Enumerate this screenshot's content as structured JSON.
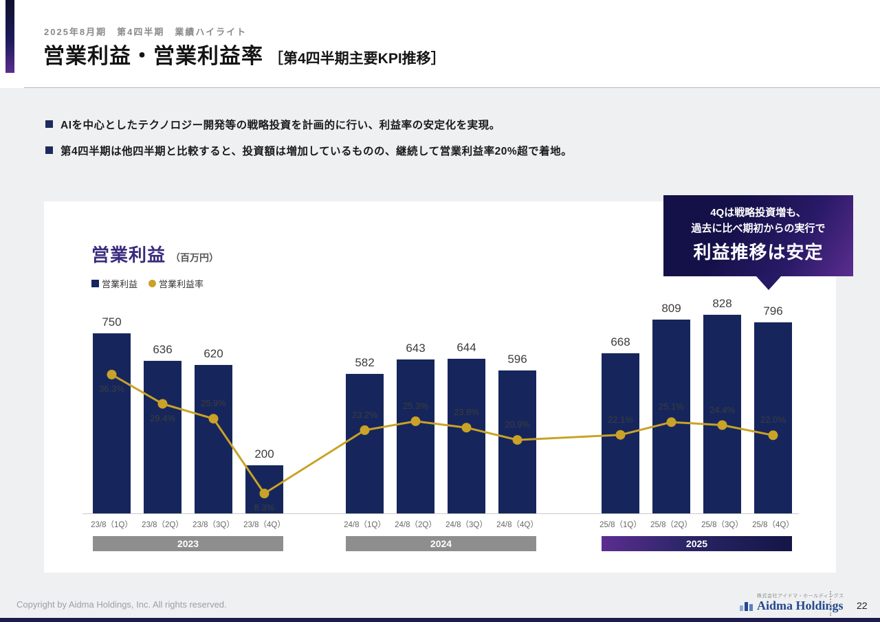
{
  "page": {
    "eyebrow": "2025年8月期　第4四半期　業績ハイライト",
    "title": "営業利益・営業利益率",
    "title_suffix": "［第4四半期主要KPI推移］",
    "bullets": [
      "AIを中心としたテクノロジー開発等の戦略投資を計画的に行い、利益率の安定化を実現。",
      "第4四半期は他四半期と比較すると、投資額は増加しているものの、継続して営業利益率20%超で着地。"
    ]
  },
  "callout": {
    "line1": "4Qは戦略投資増も、",
    "line2": "過去に比べ期初からの実行で",
    "line3": "利益推移は安定"
  },
  "chart_data": {
    "type": "bar",
    "title": "営業利益",
    "unit_label": "（百万円）",
    "legend": [
      {
        "label": "営業利益",
        "marker": "square",
        "color": "#16265c"
      },
      {
        "label": "営業利益率",
        "marker": "circle",
        "color": "#c9a227"
      }
    ],
    "legend_position": "top-left",
    "grid": false,
    "ylim": [
      0,
      900
    ],
    "categories": [
      "23/8（1Q）",
      "23/8（2Q）",
      "23/8（3Q）",
      "23/8（4Q）",
      "24/8（1Q）",
      "24/8（2Q）",
      "24/8（3Q）",
      "24/8（4Q）",
      "25/8（1Q）",
      "25/8（2Q）",
      "25/8（3Q）",
      "25/8（4Q）"
    ],
    "series": [
      {
        "name": "営業利益",
        "type": "bar",
        "color": "#16265c",
        "values": [
          750,
          636,
          620,
          200,
          582,
          643,
          644,
          596,
          668,
          809,
          828,
          796
        ]
      },
      {
        "name": "営業利益率",
        "type": "line",
        "color": "#c9a227",
        "unit": "%",
        "values": [
          36.3,
          29.4,
          25.9,
          8.3,
          23.2,
          25.3,
          23.8,
          20.9,
          22.1,
          25.1,
          24.4,
          22.0
        ],
        "label_side": [
          "below",
          "below",
          "above",
          "below",
          "above",
          "above",
          "above",
          "above",
          "above",
          "above",
          "above",
          "above"
        ]
      }
    ],
    "groups": [
      {
        "label": "2023",
        "style": "gray",
        "from": 0,
        "to": 3
      },
      {
        "label": "2024",
        "style": "gray",
        "from": 4,
        "to": 7
      },
      {
        "label": "2025",
        "style": "gradient",
        "from": 8,
        "to": 11
      }
    ]
  },
  "footer": {
    "copyright": "Copyright by Aidma Holdings, Inc. All rights reserved.",
    "logo_sub": "株式会社アイドマ・ホールディングス",
    "logo_text": "Aidma Holdings",
    "page_number": "22"
  },
  "colors": {
    "bar_navy": "#16265c",
    "line_gold": "#c9a227",
    "title_purple": "#3a2b7d",
    "band_gray": "#8e8e8e",
    "background_gray": "#eff0f1"
  }
}
